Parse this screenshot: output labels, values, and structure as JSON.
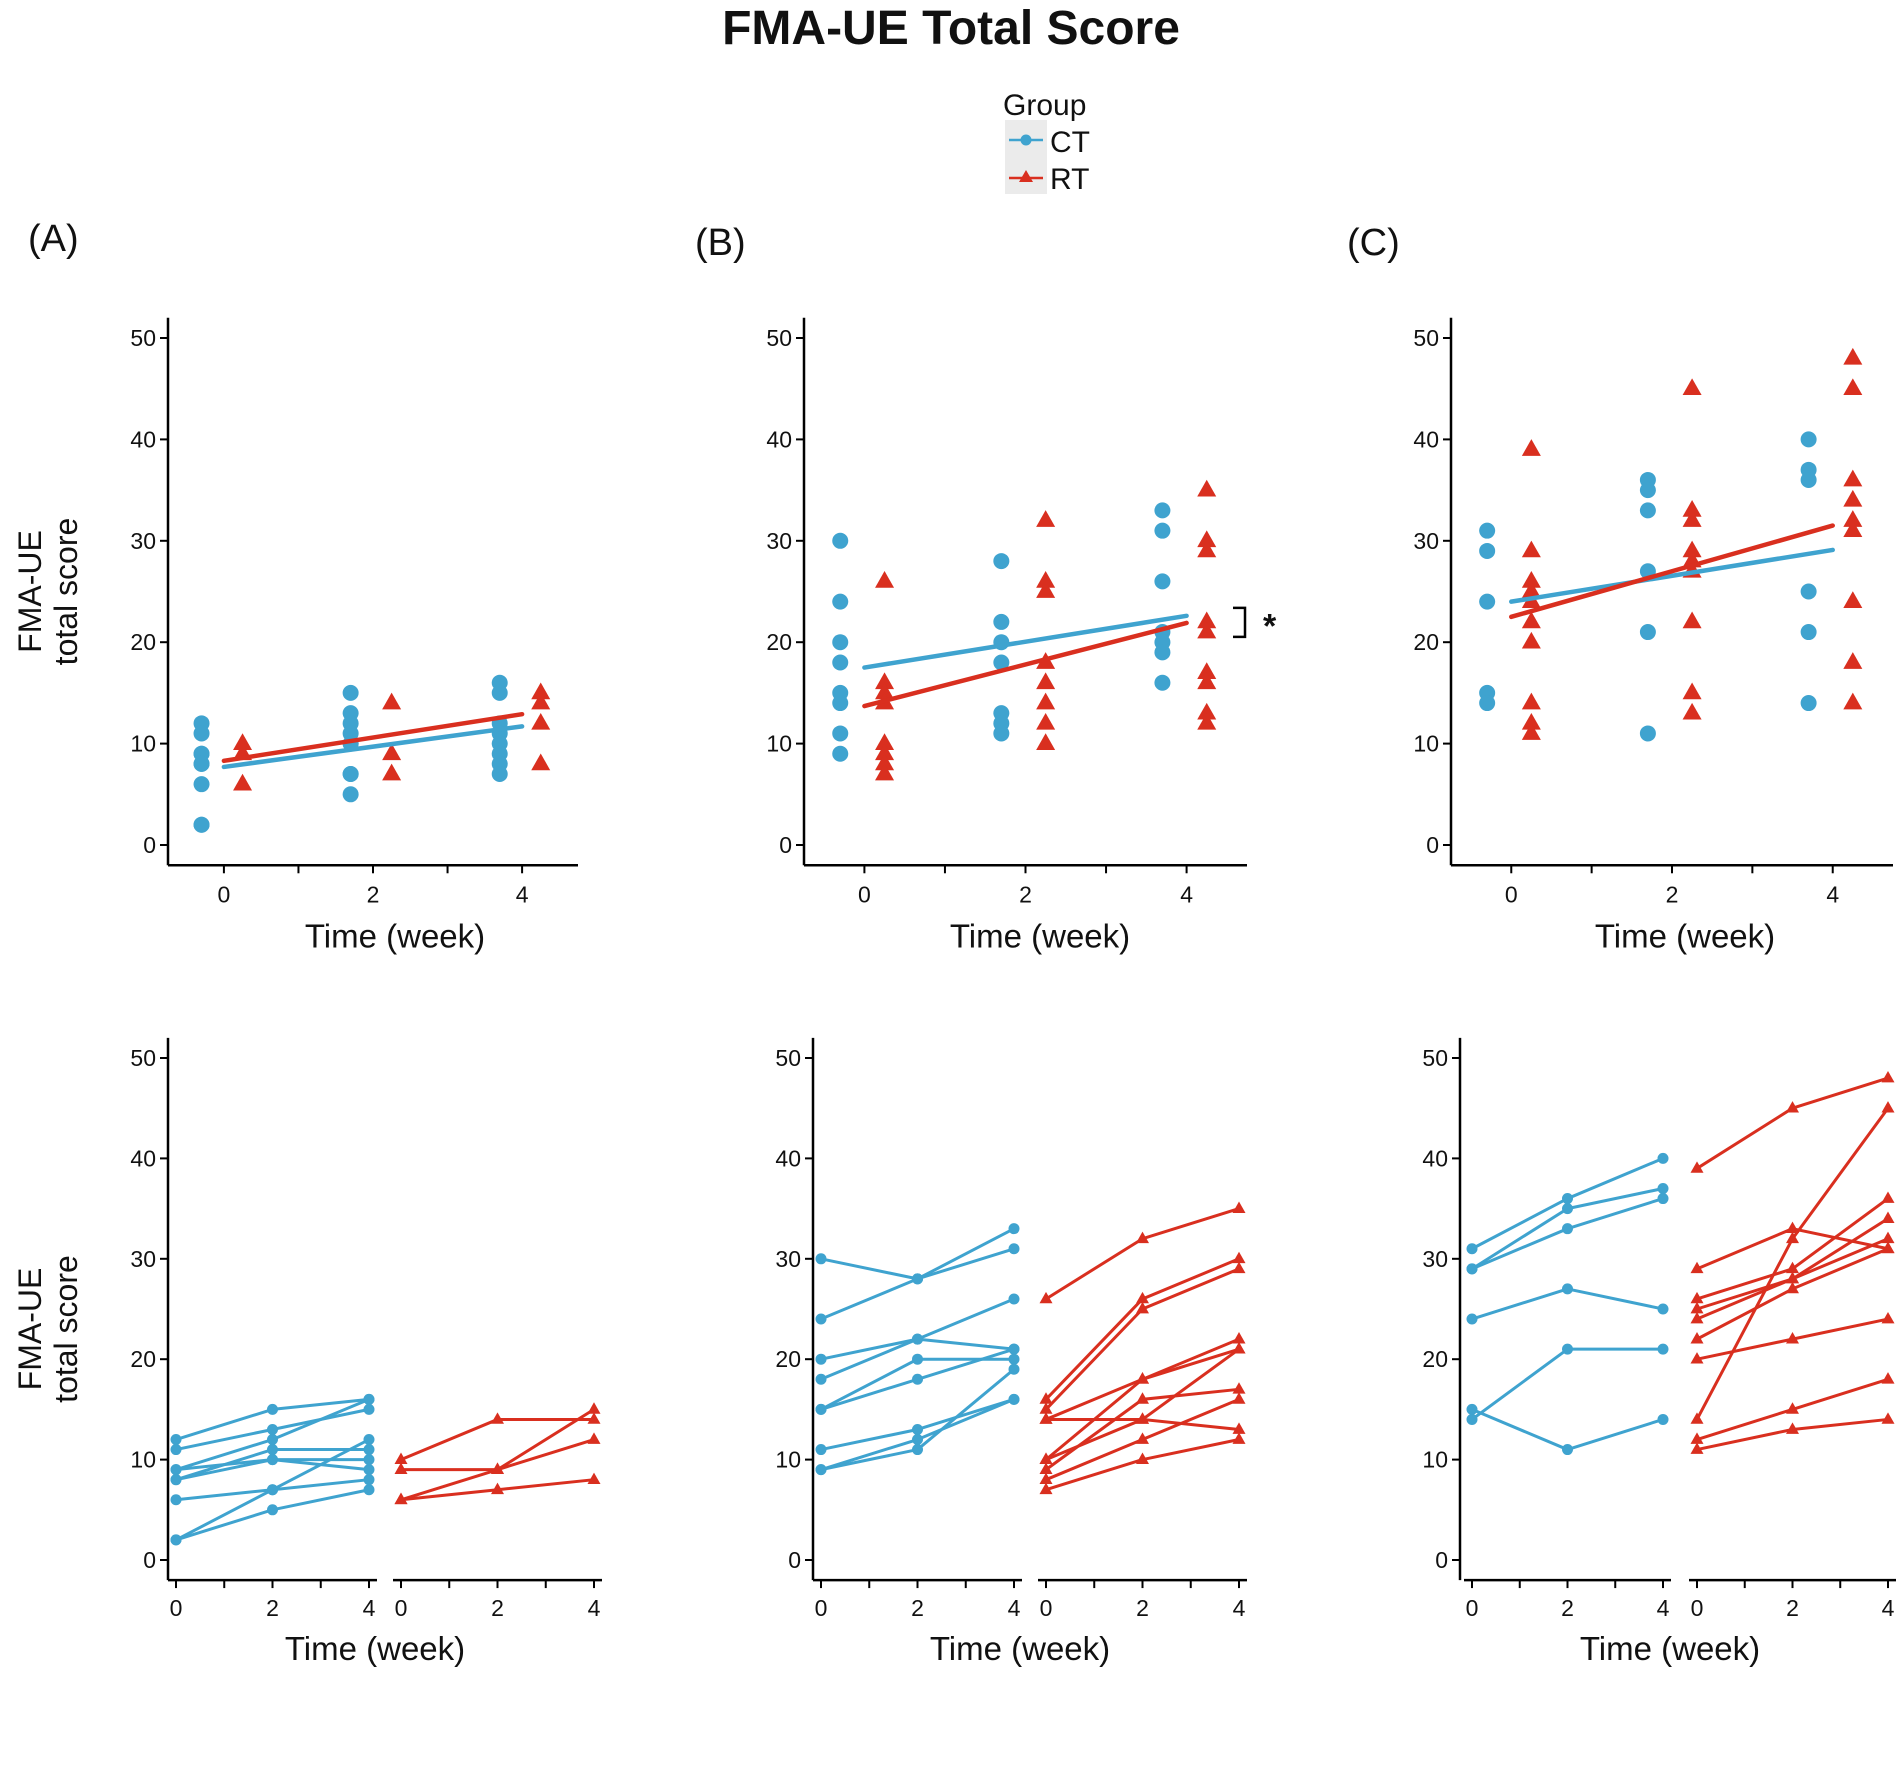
{
  "title": "FMA-UE Total Score",
  "colors": {
    "CT": "#3fa3cf",
    "RT": "#d92f1f",
    "axis": "#000000"
  },
  "legend": {
    "title": "Group",
    "items": [
      {
        "label": "CT",
        "shape": "circle"
      },
      {
        "label": "RT",
        "shape": "triangle"
      }
    ]
  },
  "axis_labels": {
    "x": "Time (week)",
    "y_line1": "FMA-UE",
    "y_line2": "total score"
  },
  "panel_labels": [
    "(A)",
    "(B)",
    "(C)"
  ],
  "significance_marker": "*",
  "chart_data": [
    {
      "panel": "(A)",
      "row": "top",
      "type": "scatter",
      "xlabel": "Time (week)",
      "ylabel": "FMA-UE total score",
      "xlim": [
        -0.75,
        4.75
      ],
      "ylim": [
        -2,
        52
      ],
      "xticks": [
        0,
        2,
        4
      ],
      "yticks": [
        0,
        10,
        20,
        30,
        40,
        50
      ],
      "series": [
        {
          "name": "CT",
          "points": [
            {
              "t": 0,
              "v": [
                12,
                11,
                9,
                9,
                8,
                8,
                6,
                2,
                2
              ]
            },
            {
              "t": 2,
              "v": [
                15,
                13,
                12,
                11,
                10,
                10,
                7,
                7,
                5
              ]
            },
            {
              "t": 4,
              "v": [
                16,
                15,
                12,
                11,
                10,
                9,
                8,
                7
              ]
            }
          ],
          "trend": {
            "x0": 0,
            "y0": 7.7,
            "x1": 4,
            "y1": 11.7
          }
        },
        {
          "name": "RT",
          "points": [
            {
              "t": 0,
              "v": [
                10,
                9,
                6
              ]
            },
            {
              "t": 2,
              "v": [
                14,
                9,
                7
              ]
            },
            {
              "t": 4,
              "v": [
                15,
                14,
                12,
                8
              ]
            }
          ],
          "trend": {
            "x0": 0,
            "y0": 8.3,
            "x1": 4,
            "y1": 12.9
          }
        }
      ],
      "significance": false
    },
    {
      "panel": "(B)",
      "row": "top",
      "type": "scatter",
      "xlabel": "Time (week)",
      "ylabel": "FMA-UE total score",
      "xlim": [
        -0.75,
        4.75
      ],
      "ylim": [
        -2,
        52
      ],
      "xticks": [
        0,
        2,
        4
      ],
      "yticks": [
        0,
        10,
        20,
        30,
        40,
        50
      ],
      "series": [
        {
          "name": "CT",
          "points": [
            {
              "t": 0,
              "v": [
                30,
                24,
                20,
                18,
                15,
                14,
                11,
                9
              ]
            },
            {
              "t": 2,
              "v": [
                28,
                22,
                20,
                18,
                13,
                12,
                11
              ]
            },
            {
              "t": 4,
              "v": [
                33,
                31,
                26,
                21,
                20,
                19,
                16
              ]
            }
          ],
          "trend": {
            "x0": 0,
            "y0": 17.5,
            "x1": 4,
            "y1": 22.6
          }
        },
        {
          "name": "RT",
          "points": [
            {
              "t": 0,
              "v": [
                26,
                16,
                15,
                14,
                10,
                9,
                8,
                7
              ]
            },
            {
              "t": 2,
              "v": [
                32,
                26,
                25,
                18,
                16,
                14,
                12,
                10
              ]
            },
            {
              "t": 4,
              "v": [
                35,
                30,
                29,
                22,
                21,
                17,
                16,
                13,
                12
              ]
            }
          ],
          "trend": {
            "x0": 0,
            "y0": 13.7,
            "x1": 4,
            "y1": 21.9
          }
        }
      ],
      "significance": true
    },
    {
      "panel": "(C)",
      "row": "top",
      "type": "scatter",
      "xlabel": "Time (week)",
      "ylabel": "FMA-UE total score",
      "xlim": [
        -0.75,
        4.75
      ],
      "ylim": [
        -2,
        52
      ],
      "xticks": [
        0,
        2,
        4
      ],
      "yticks": [
        0,
        10,
        20,
        30,
        40,
        50
      ],
      "series": [
        {
          "name": "CT",
          "points": [
            {
              "t": 0,
              "v": [
                31,
                29,
                24,
                15,
                14
              ]
            },
            {
              "t": 2,
              "v": [
                36,
                35,
                33,
                27,
                21,
                11
              ]
            },
            {
              "t": 4,
              "v": [
                40,
                37,
                36,
                25,
                21,
                14
              ]
            }
          ],
          "trend": {
            "x0": 0,
            "y0": 24.0,
            "x1": 4,
            "y1": 29.1
          }
        },
        {
          "name": "RT",
          "points": [
            {
              "t": 0,
              "v": [
                39,
                29,
                26,
                25,
                24,
                22,
                20,
                14,
                12,
                11
              ]
            },
            {
              "t": 2,
              "v": [
                45,
                33,
                32,
                29,
                28,
                27,
                22,
                15,
                13
              ]
            },
            {
              "t": 4,
              "v": [
                48,
                45,
                36,
                34,
                32,
                31,
                24,
                18,
                14
              ]
            }
          ],
          "trend": {
            "x0": 0,
            "y0": 22.5,
            "x1": 4,
            "y1": 31.5
          }
        }
      ],
      "significance": false
    },
    {
      "panel": "(A)",
      "row": "bottom",
      "type": "line",
      "xlabel": "Time (week)",
      "ylabel": "FMA-UE total score",
      "x": [
        0,
        2,
        4
      ],
      "ylim": [
        -2,
        52
      ],
      "yticks": [
        0,
        10,
        20,
        30,
        40,
        50
      ],
      "series": [
        {
          "name": "CT",
          "subjects": [
            [
              12,
              15,
              16
            ],
            [
              11,
              13,
              15
            ],
            [
              9,
              12,
              16
            ],
            [
              9,
              10,
              9
            ],
            [
              8,
              11,
              11
            ],
            [
              8,
              10,
              10
            ],
            [
              6,
              7,
              8
            ],
            [
              2,
              7,
              12
            ],
            [
              2,
              5,
              7
            ]
          ]
        },
        {
          "name": "RT",
          "subjects": [
            [
              10,
              14,
              14
            ],
            [
              9,
              9,
              15
            ],
            [
              6,
              9,
              12
            ],
            [
              6,
              7,
              8
            ]
          ]
        }
      ]
    },
    {
      "panel": "(B)",
      "row": "bottom",
      "type": "line",
      "xlabel": "Time (week)",
      "ylabel": "FMA-UE total score",
      "x": [
        0,
        2,
        4
      ],
      "ylim": [
        -2,
        52
      ],
      "yticks": [
        0,
        10,
        20,
        30,
        40,
        50
      ],
      "series": [
        {
          "name": "CT",
          "subjects": [
            [
              30,
              28,
              33
            ],
            [
              24,
              28,
              31
            ],
            [
              20,
              22,
              26
            ],
            [
              18,
              22,
              21
            ],
            [
              15,
              20,
              20
            ],
            [
              15,
              18,
              21
            ],
            [
              11,
              13,
              16
            ],
            [
              9,
              11,
              19
            ],
            [
              9,
              12,
              16
            ]
          ]
        },
        {
          "name": "RT",
          "subjects": [
            [
              26,
              32,
              35
            ],
            [
              16,
              26,
              30
            ],
            [
              15,
              25,
              29
            ],
            [
              14,
              18,
              22
            ],
            [
              14,
              14,
              21
            ],
            [
              10,
              18,
              21
            ],
            [
              9,
              16,
              17
            ],
            [
              8,
              12,
              16
            ],
            [
              7,
              10,
              12
            ],
            [
              10,
              14,
              13
            ]
          ]
        }
      ]
    },
    {
      "panel": "(C)",
      "row": "bottom",
      "type": "line",
      "xlabel": "Time (week)",
      "ylabel": "FMA-UE total score",
      "x": [
        0,
        2,
        4
      ],
      "ylim": [
        -2,
        52
      ],
      "yticks": [
        0,
        10,
        20,
        30,
        40,
        50
      ],
      "series": [
        {
          "name": "CT",
          "subjects": [
            [
              31,
              36,
              40
            ],
            [
              29,
              35,
              37
            ],
            [
              29,
              33,
              36
            ],
            [
              24,
              27,
              25
            ],
            [
              15,
              11,
              14
            ],
            [
              14,
              21,
              21
            ]
          ]
        },
        {
          "name": "RT",
          "subjects": [
            [
              39,
              45,
              48
            ],
            [
              29,
              33,
              31
            ],
            [
              26,
              29,
              36
            ],
            [
              25,
              28,
              34
            ],
            [
              24,
              28,
              32
            ],
            [
              22,
              27,
              31
            ],
            [
              20,
              22,
              24
            ],
            [
              14,
              32,
              45
            ],
            [
              12,
              15,
              18
            ],
            [
              11,
              13,
              14
            ]
          ]
        }
      ]
    }
  ]
}
